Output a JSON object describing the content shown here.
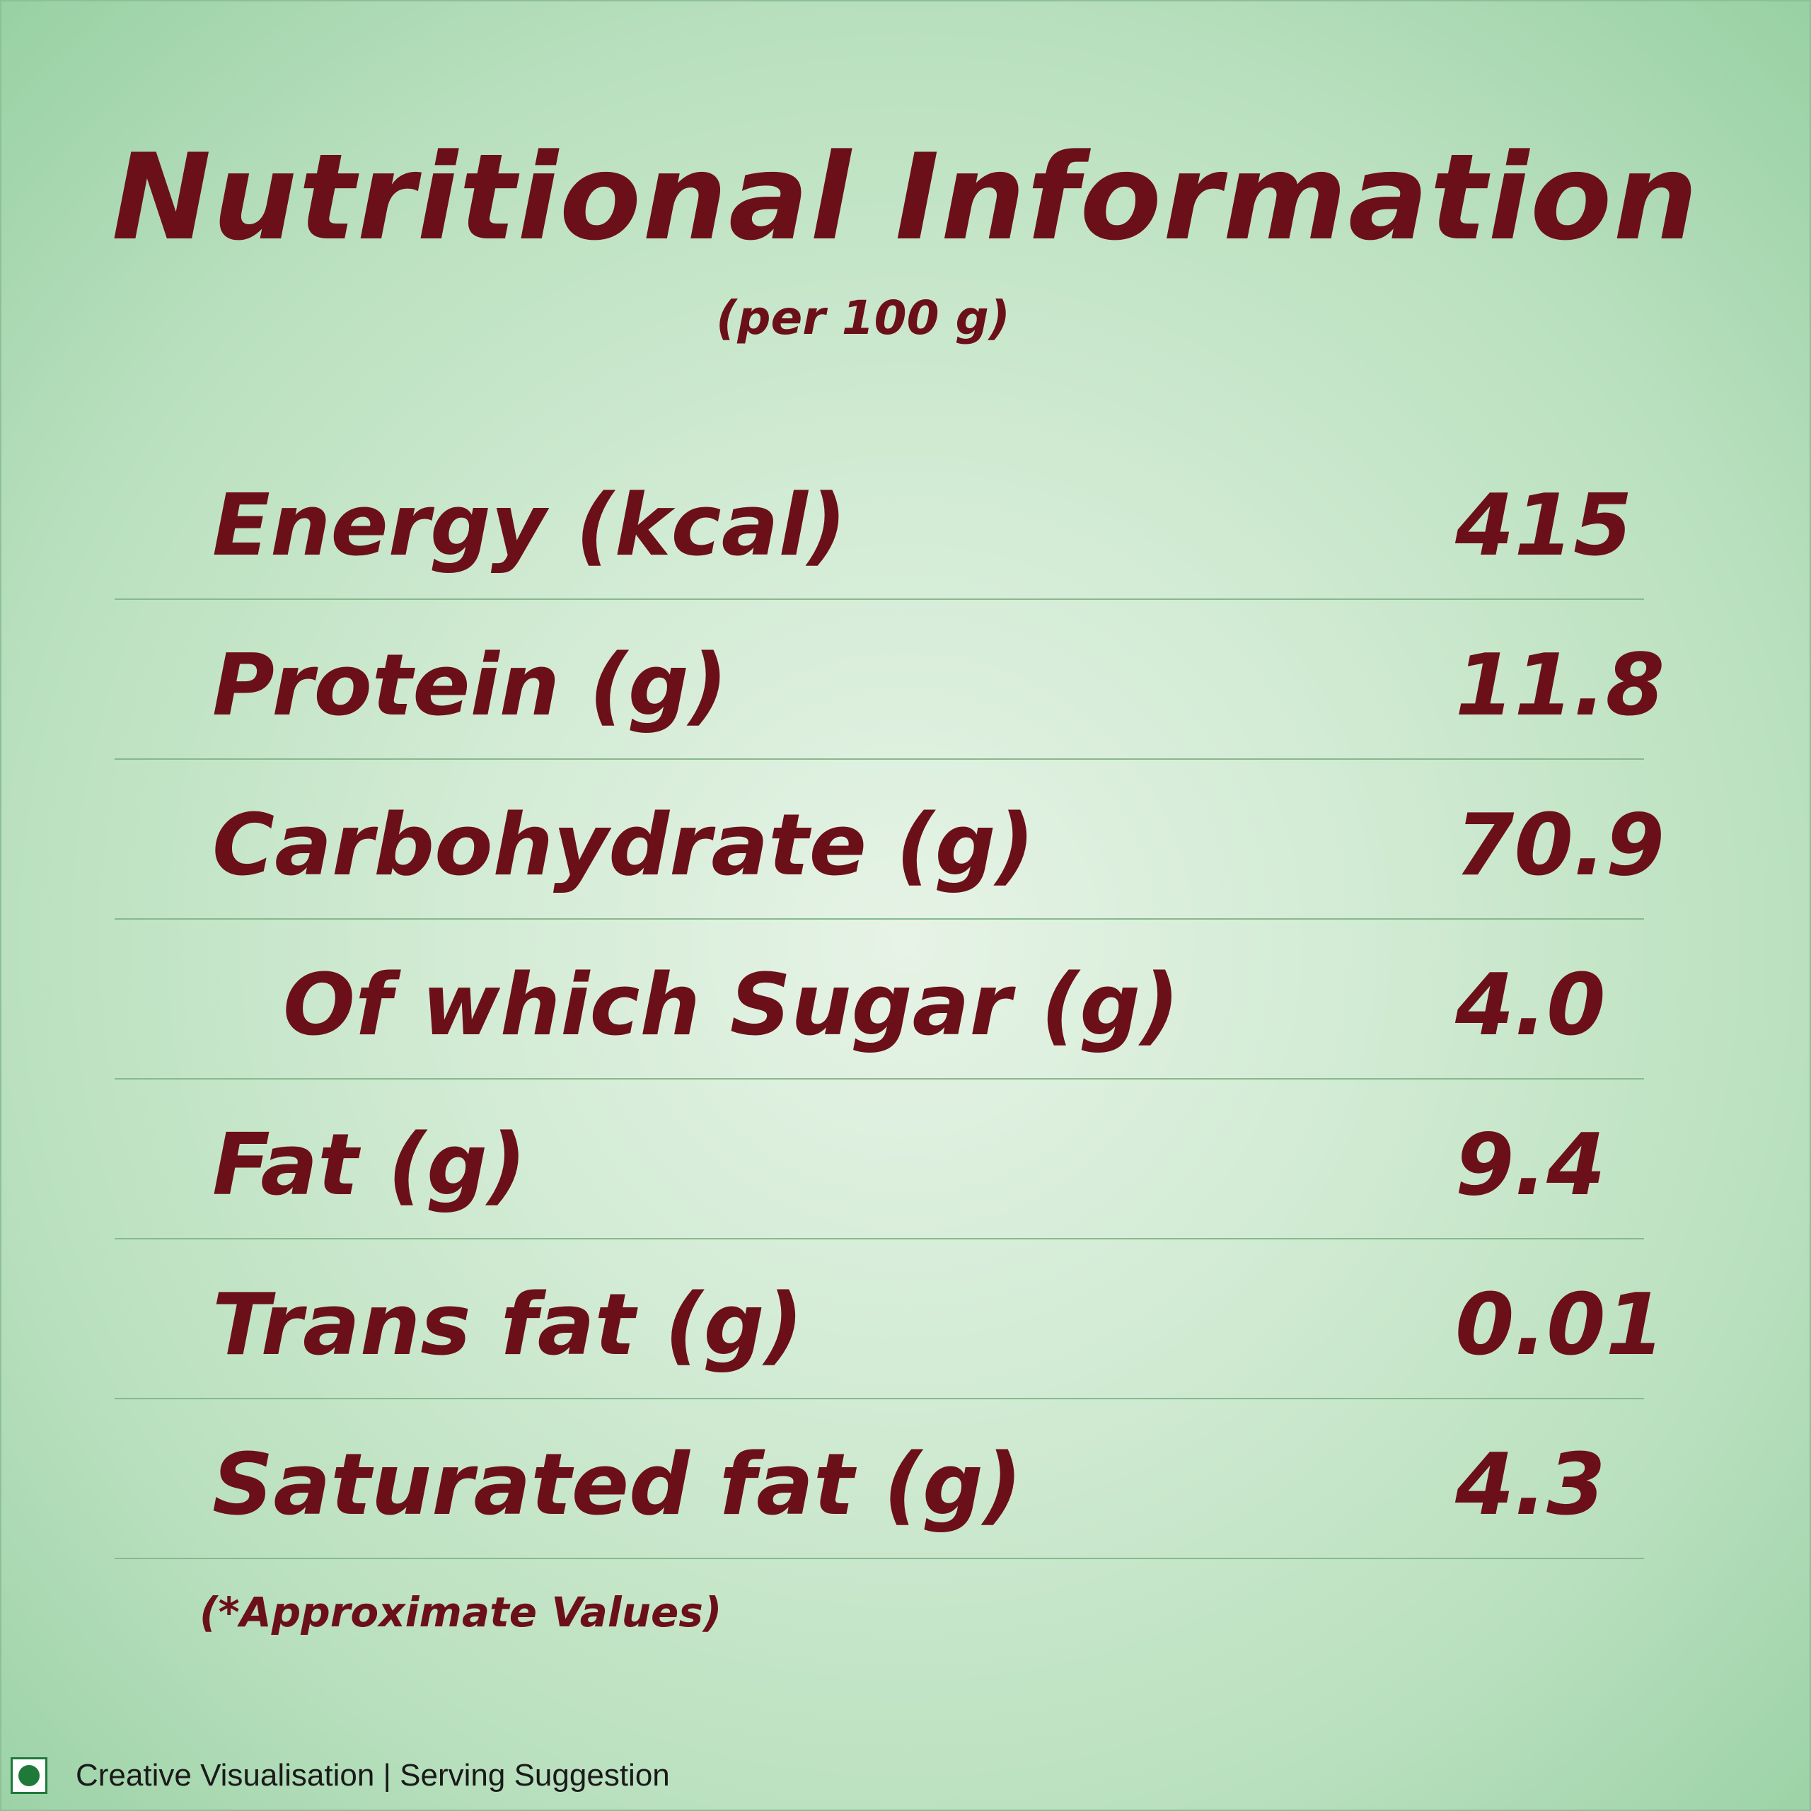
{
  "header": {
    "title": "Nutritional Information",
    "subtitle": "(per 100 g)"
  },
  "nutrients": [
    {
      "label": "Energy (kcal)",
      "value": "415"
    },
    {
      "label": "Protein (g)",
      "value": "11.8"
    },
    {
      "label": "Carbohydrate (g)",
      "value": "70.9"
    },
    {
      "label": "Of which Sugar (g)",
      "value": "4.0"
    },
    {
      "label": "Fat (g)",
      "value": "9.4"
    },
    {
      "label": "Trans fat (g)",
      "value": "0.01"
    },
    {
      "label": "Saturated fat (g)",
      "value": "4.3"
    }
  ],
  "note": "(*Approximate Values)",
  "footer": {
    "icon": "veg-mark-icon",
    "text": "Creative Visualisation | Serving Suggestion"
  },
  "colors": {
    "text": "#6b1019",
    "divider": "#86b98e",
    "veg_green": "#1f7a3a"
  }
}
